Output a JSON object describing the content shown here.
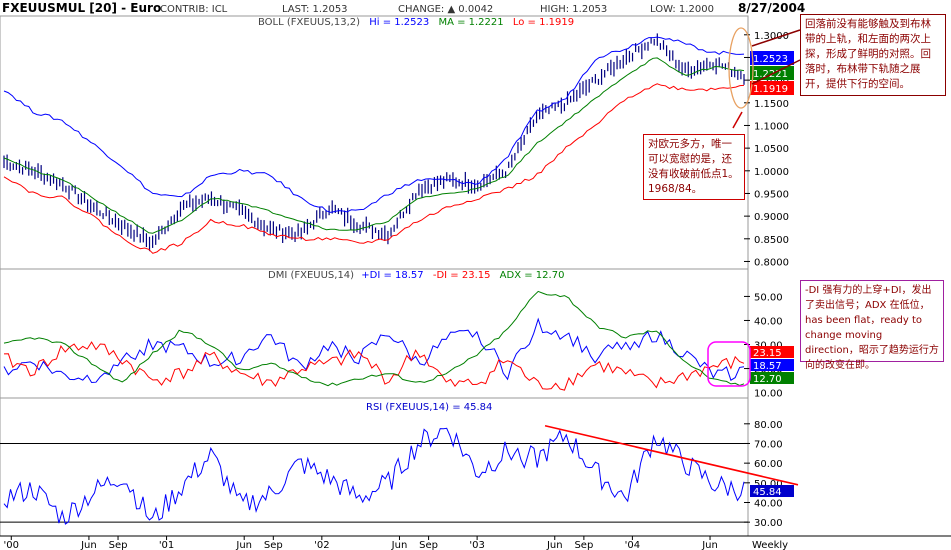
{
  "header": {
    "symbol": "FXEUUSMUL [20] - Euro",
    "contrib": "CONTRIB: ICL",
    "last": "LAST: 1.2053",
    "change": "CHANGE: ▲ 0.0042",
    "high": "HIGH: 1.2053",
    "low": "LOW: 1.2000",
    "date": "8/27/2004"
  },
  "colors": {
    "bars": "#00007f",
    "boll_upper": "#0000ff",
    "boll_ma": "#008000",
    "boll_lower": "#ff0000",
    "plus_di": "#0000ff",
    "minus_di": "#ff0000",
    "adx": "#008000",
    "rsi": "#0000ff",
    "note_border": "#8b0000",
    "note_text": "#8b0000",
    "note_border_purple": "#a020a0",
    "highlight_box": "#ff00ff"
  },
  "chart_data": [
    {
      "type": "line",
      "panel": "price",
      "title": "BOLL (FXEUUS,13,2)",
      "series": [
        {
          "name": "Hi",
          "legend": "Hi = 1.2523",
          "values": [
            1.18,
            1.13,
            1.11,
            1.06,
            1.01,
            0.95,
            0.94,
            0.99,
            1.0,
            0.99,
            0.94,
            0.91,
            0.91,
            0.95,
            0.98,
            0.98,
            0.97,
            1.03,
            1.13,
            1.16,
            1.25,
            1.27,
            1.3,
            1.28,
            1.26,
            1.26
          ]
        },
        {
          "name": "MA",
          "legend": "MA = 1.2221",
          "values": [
            1.03,
            1.0,
            0.98,
            0.94,
            0.9,
            0.86,
            0.89,
            0.94,
            0.93,
            0.91,
            0.89,
            0.87,
            0.87,
            0.89,
            0.94,
            0.95,
            0.96,
            0.99,
            1.06,
            1.11,
            1.16,
            1.21,
            1.25,
            1.21,
            1.23,
            1.22
          ]
        },
        {
          "name": "Lo",
          "legend": "Lo = 1.1919",
          "values": [
            0.99,
            0.95,
            0.94,
            0.9,
            0.85,
            0.82,
            0.84,
            0.89,
            0.88,
            0.86,
            0.85,
            0.85,
            0.84,
            0.85,
            0.89,
            0.92,
            0.94,
            0.96,
            0.99,
            1.05,
            1.1,
            1.16,
            1.19,
            1.18,
            1.18,
            1.19
          ]
        }
      ],
      "price_path": [
        1.02,
        1.0,
        0.97,
        0.92,
        0.88,
        0.84,
        0.92,
        0.94,
        0.91,
        0.87,
        0.86,
        0.92,
        0.88,
        0.86,
        0.96,
        0.98,
        0.97,
        1.0,
        1.12,
        1.15,
        1.2,
        1.25,
        1.29,
        1.22,
        1.24,
        1.21
      ],
      "y_ticks": [
        "1.3000",
        "1.2500",
        "1.2000",
        "1.1500",
        "1.1000",
        "1.0500",
        "1.0000",
        "0.9500",
        "0.9000",
        "0.8500",
        "0.8000"
      ],
      "ylim": [
        0.79,
        1.315
      ],
      "last_labels": [
        "1.2523",
        "1.2221",
        "1.1919"
      ]
    },
    {
      "type": "line",
      "panel": "dmi",
      "title": "DMI (FXEUUS,14)",
      "series": [
        {
          "name": "+DI",
          "legend": "+DI = 18.57",
          "values": [
            19,
            23,
            17,
            16,
            24,
            30,
            28,
            22,
            25,
            34,
            20,
            30,
            24,
            35,
            22,
            32,
            35,
            18,
            38,
            34,
            25,
            30,
            34,
            26,
            17,
            19
          ]
        },
        {
          "name": "-DI",
          "legend": "-DI = 23.15",
          "values": [
            24,
            19,
            28,
            30,
            24,
            15,
            18,
            25,
            18,
            14,
            20,
            22,
            26,
            15,
            28,
            13,
            14,
            24,
            13,
            14,
            22,
            18,
            13,
            17,
            21,
            23
          ]
        },
        {
          "name": "ADX",
          "legend": "ADX = 12.70",
          "values": [
            30,
            33,
            30,
            22,
            14,
            26,
            36,
            30,
            19,
            22,
            17,
            13,
            16,
            18,
            14,
            18,
            26,
            36,
            52,
            50,
            38,
            33,
            36,
            23,
            15,
            13
          ]
        }
      ],
      "y_ticks": [
        "50.00",
        "40.00",
        "30.00",
        "20.00"
      ],
      "y_tick_values": [
        50,
        40,
        30,
        20
      ],
      "bottom_label": "10.00",
      "ylim": [
        9,
        56
      ],
      "last_labels": [
        "23.15",
        "18.57",
        "12.70"
      ]
    },
    {
      "type": "line",
      "panel": "rsi",
      "title": "RSI (FXEUUS,14)",
      "series": [
        {
          "name": "RSI",
          "legend": "RSI (FXEUUS,14) = 45.84",
          "values": [
            42,
            47,
            32,
            45,
            54,
            30,
            48,
            64,
            38,
            44,
            60,
            52,
            42,
            50,
            70,
            78,
            55,
            66,
            62,
            74,
            55,
            42,
            74,
            60,
            49,
            46
          ]
        }
      ],
      "reference_lines": [
        70,
        30
      ],
      "y_ticks": [
        "80.00",
        "70.00",
        "60.00",
        "50.00",
        "40.00",
        "30.00"
      ],
      "y_tick_values": [
        80,
        70,
        60,
        50,
        40,
        30
      ],
      "ylim": [
        25,
        86
      ],
      "last_label": "45.84",
      "trendline": {
        "from_index": 22,
        "from_value": 79,
        "to_value": 49
      }
    }
  ],
  "x_axis": {
    "labels": [
      "'00",
      "Jun",
      "Sep",
      "'01",
      "Jun",
      "Sep",
      "'02",
      "Jun",
      "Sep",
      "'03",
      "Jun",
      "Sep",
      "'04",
      "Jun"
    ],
    "positions": [
      0,
      3.2,
      4.4,
      6.4,
      9.6,
      10.8,
      12.8,
      16.0,
      17.2,
      19.2,
      22.4,
      23.6,
      25.6,
      28.8
    ],
    "period_label": "Weekly",
    "range": [
      -0.3,
      30.2
    ]
  },
  "annotations": {
    "top_right": "回落前没有能够触及到布林带的上轨，和左面的两次上探，形成了鲜明的对照。回落时，布林带下轨随之展开，提供下行的空间。",
    "middle": "对欧元多方，唯一可以宽慰的是，还没有收破前低点1。1968/84。",
    "dmi_right": "-DI 强有力的上穿+DI，发出了卖出信号；ADX 在低位，has been flat，ready to change moving direction，昭示了趋势运行方向的改变在即。"
  }
}
